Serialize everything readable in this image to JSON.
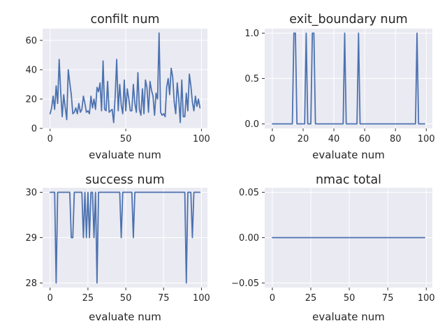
{
  "chart_data": [
    {
      "type": "line",
      "title": "confilt num",
      "xlabel": "evaluate num",
      "ylabel": "",
      "xlim": [
        -4.95,
        103.95
      ],
      "ylim": [
        0,
        68
      ],
      "xticks": [
        0,
        50,
        100
      ],
      "yticks": [
        0,
        20,
        40,
        60
      ],
      "yticklabels": [
        "0",
        "20",
        "40",
        "60"
      ],
      "grid": true,
      "series": [
        {
          "name": "",
          "x": [
            0,
            1,
            2,
            3,
            4,
            5,
            6,
            7,
            8,
            9,
            10,
            11,
            12,
            13,
            14,
            15,
            16,
            17,
            18,
            19,
            20,
            21,
            22,
            23,
            24,
            25,
            26,
            27,
            28,
            29,
            30,
            31,
            32,
            33,
            34,
            35,
            36,
            37,
            38,
            39,
            40,
            41,
            42,
            43,
            44,
            45,
            46,
            47,
            48,
            49,
            50,
            51,
            52,
            53,
            54,
            55,
            56,
            57,
            58,
            59,
            60,
            61,
            62,
            63,
            64,
            65,
            66,
            67,
            68,
            69,
            70,
            71,
            72,
            73,
            74,
            75,
            76,
            77,
            78,
            79,
            80,
            81,
            82,
            83,
            84,
            85,
            86,
            87,
            88,
            89,
            90,
            91,
            92,
            93,
            94,
            95,
            96,
            97,
            98,
            99
          ],
          "values": [
            10,
            14,
            22,
            13,
            29,
            17,
            47,
            25,
            8,
            23,
            14,
            6,
            40,
            31,
            23,
            10,
            11,
            14,
            10,
            17,
            11,
            13,
            22,
            17,
            11,
            12,
            10,
            22,
            14,
            20,
            13,
            28,
            25,
            31,
            12,
            46,
            13,
            12,
            32,
            11,
            12,
            13,
            4,
            22,
            47,
            12,
            30,
            16,
            10,
            33,
            12,
            27,
            20,
            12,
            12,
            30,
            17,
            11,
            38,
            13,
            9,
            27,
            10,
            33,
            28,
            11,
            32,
            26,
            22,
            9,
            24,
            20,
            65,
            11,
            9,
            10,
            8,
            28,
            34,
            23,
            41,
            35,
            18,
            10,
            31,
            20,
            4,
            33,
            8,
            8,
            24,
            12,
            37,
            29,
            18,
            12,
            22,
            15,
            20,
            14
          ]
        }
      ]
    },
    {
      "type": "line",
      "title": "exit_boundary num",
      "xlabel": "evaluate num",
      "ylabel": "",
      "xlim": [
        -4.95,
        103.95
      ],
      "ylim": [
        -0.05,
        1.05
      ],
      "xticks": [
        0,
        20,
        40,
        60,
        80,
        100
      ],
      "yticks": [
        0,
        0.5,
        1
      ],
      "yticklabels": [
        "0.0",
        "0.5",
        "1.0"
      ],
      "grid": true,
      "series": [
        {
          "name": "",
          "x": [
            0,
            1,
            2,
            3,
            4,
            5,
            6,
            7,
            8,
            9,
            10,
            11,
            12,
            13,
            14,
            15,
            16,
            17,
            18,
            19,
            20,
            21,
            22,
            23,
            24,
            25,
            26,
            27,
            28,
            29,
            30,
            31,
            32,
            33,
            34,
            35,
            36,
            37,
            38,
            39,
            40,
            41,
            42,
            43,
            44,
            45,
            46,
            47,
            48,
            49,
            50,
            51,
            52,
            53,
            54,
            55,
            56,
            57,
            58,
            59,
            60,
            61,
            62,
            63,
            64,
            65,
            66,
            67,
            68,
            69,
            70,
            71,
            72,
            73,
            74,
            75,
            76,
            77,
            78,
            79,
            80,
            81,
            82,
            83,
            84,
            85,
            86,
            87,
            88,
            89,
            90,
            91,
            92,
            93,
            94,
            95,
            96,
            97,
            98,
            99
          ],
          "values": [
            0,
            0,
            0,
            0,
            0,
            0,
            0,
            0,
            0,
            0,
            0,
            0,
            0,
            0,
            1,
            1,
            0,
            0,
            0,
            0,
            0,
            0,
            1,
            0,
            0,
            0,
            1,
            1,
            0,
            0,
            0,
            0,
            0,
            0,
            0,
            0,
            0,
            0,
            0,
            0,
            0,
            0,
            0,
            0,
            0,
            0,
            0,
            1,
            0,
            0,
            0,
            0,
            0,
            0,
            0,
            0,
            1,
            0,
            0,
            0,
            0,
            0,
            0,
            0,
            0,
            0,
            0,
            0,
            0,
            0,
            0,
            0,
            0,
            0,
            0,
            0,
            0,
            0,
            0,
            0,
            0,
            0,
            0,
            0,
            0,
            0,
            0,
            0,
            0,
            0,
            0,
            0,
            0,
            0,
            1,
            0,
            0,
            0,
            0,
            0
          ]
        }
      ]
    },
    {
      "type": "line",
      "title": "success num",
      "xlabel": "evaluate num",
      "ylabel": "",
      "xlim": [
        -4.95,
        103.95
      ],
      "ylim": [
        27.9,
        30.1
      ],
      "xticks": [
        0,
        25,
        50,
        75,
        100
      ],
      "yticks": [
        28,
        29,
        30
      ],
      "yticklabels": [
        "28",
        "29",
        "30"
      ],
      "grid": true,
      "series": [
        {
          "name": "",
          "x": [
            0,
            1,
            2,
            3,
            4,
            5,
            6,
            7,
            8,
            9,
            10,
            11,
            12,
            13,
            14,
            15,
            16,
            17,
            18,
            19,
            20,
            21,
            22,
            23,
            24,
            25,
            26,
            27,
            28,
            29,
            30,
            31,
            32,
            33,
            34,
            35,
            36,
            37,
            38,
            39,
            40,
            41,
            42,
            43,
            44,
            45,
            46,
            47,
            48,
            49,
            50,
            51,
            52,
            53,
            54,
            55,
            56,
            57,
            58,
            59,
            60,
            61,
            62,
            63,
            64,
            65,
            66,
            67,
            68,
            69,
            70,
            71,
            72,
            73,
            74,
            75,
            76,
            77,
            78,
            79,
            80,
            81,
            82,
            83,
            84,
            85,
            86,
            87,
            88,
            89,
            90,
            91,
            92,
            93,
            94,
            95,
            96,
            97,
            98,
            99
          ],
          "values": [
            30,
            30,
            30,
            30,
            28,
            30,
            30,
            30,
            30,
            30,
            30,
            30,
            30,
            30,
            29,
            29,
            30,
            30,
            30,
            30,
            30,
            30,
            29,
            30,
            29,
            30,
            29,
            30,
            30,
            29,
            30,
            28,
            30,
            30,
            30,
            30,
            30,
            30,
            30,
            30,
            30,
            30,
            30,
            30,
            30,
            30,
            30,
            29,
            30,
            30,
            30,
            30,
            30,
            30,
            30,
            29,
            30,
            30,
            30,
            30,
            30,
            30,
            30,
            30,
            30,
            30,
            30,
            30,
            30,
            30,
            30,
            30,
            30,
            30,
            30,
            30,
            30,
            30,
            30,
            30,
            30,
            30,
            30,
            30,
            30,
            30,
            30,
            30,
            30,
            30,
            28,
            30,
            30,
            30,
            29,
            30,
            30,
            30,
            30,
            30
          ]
        }
      ]
    },
    {
      "type": "line",
      "title": "nmac total",
      "xlabel": "evaluate num",
      "ylabel": "",
      "xlim": [
        -4.95,
        103.95
      ],
      "ylim": [
        -0.055,
        0.055
      ],
      "xticks": [
        0,
        25,
        50,
        75,
        100
      ],
      "yticks": [
        -0.05,
        0,
        0.05
      ],
      "yticklabels": [
        "−0.05",
        "0.00",
        "0.05"
      ],
      "grid": true,
      "series": [
        {
          "name": "",
          "x": [
            0,
            99
          ],
          "values": [
            0,
            0
          ]
        }
      ]
    }
  ]
}
